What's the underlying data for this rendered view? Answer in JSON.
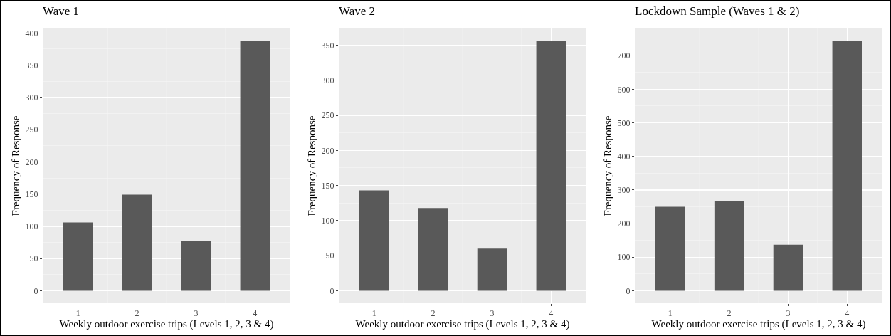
{
  "chart_data": [
    {
      "type": "bar",
      "title": "Wave 1",
      "xlabel": "Weekly outdoor exercise trips (Levels 1, 2, 3 & 4)",
      "ylabel": "Frequency of Response",
      "categories": [
        "1",
        "2",
        "3",
        "4"
      ],
      "values": [
        106,
        149,
        77,
        388
      ],
      "color": "#595959",
      "ylim": [
        -19.4,
        407
      ],
      "yticks": [
        0,
        50,
        100,
        150,
        200,
        250,
        300,
        350,
        400
      ],
      "grid": true
    },
    {
      "type": "bar",
      "title": "Wave 2",
      "xlabel": "Weekly outdoor exercise trips (Levels 1, 2, 3 & 4)",
      "ylabel": "Frequency of Response",
      "categories": [
        "1",
        "2",
        "3",
        "4"
      ],
      "values": [
        143,
        118,
        60,
        356
      ],
      "color": "#595959",
      "ylim": [
        -17.8,
        373.8
      ],
      "yticks": [
        0,
        50,
        100,
        150,
        200,
        250,
        300,
        350
      ],
      "grid": true
    },
    {
      "type": "bar",
      "title": "Lockdown Sample (Waves 1 & 2)",
      "xlabel": "Weekly outdoor exercise trips (Levels 1, 2, 3 & 4)",
      "ylabel": "Frequency of Response",
      "categories": [
        "1",
        "2",
        "3",
        "4"
      ],
      "values": [
        250,
        267,
        137,
        744
      ],
      "color": "#595959",
      "ylim": [
        -37.2,
        781
      ],
      "yticks": [
        0,
        100,
        200,
        300,
        400,
        500,
        600,
        700
      ],
      "grid": true
    }
  ]
}
